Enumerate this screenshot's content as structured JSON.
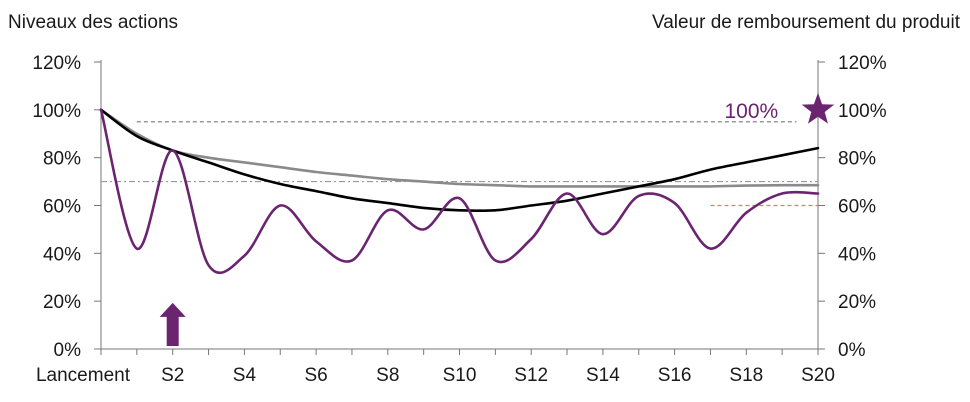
{
  "chart_data": {
    "type": "line",
    "left_axis_title": "Niveaux des actions",
    "right_axis_title": "Valeur de remboursement du produit",
    "y_ticks": [
      "0%",
      "20%",
      "40%",
      "60%",
      "80%",
      "100%",
      "120%"
    ],
    "y_tick_values": [
      0,
      20,
      40,
      60,
      80,
      100,
      120
    ],
    "ylim": [
      0,
      120
    ],
    "x_ticks": [
      "Lancement",
      "S2",
      "S4",
      "S6",
      "S8",
      "S10",
      "S12",
      "S14",
      "S16",
      "S18",
      "S20"
    ],
    "x_tick_values": [
      0,
      2,
      4,
      6,
      8,
      10,
      12,
      14,
      16,
      18,
      20
    ],
    "xlim": [
      0,
      20
    ],
    "series": [
      {
        "name": "black-curve",
        "color": "#000000",
        "x": [
          0,
          1,
          2,
          3,
          4,
          5,
          6,
          7,
          8,
          9,
          10,
          11,
          12,
          13,
          14,
          15,
          16,
          17,
          18,
          19,
          20
        ],
        "values": [
          100,
          89,
          83,
          78,
          73,
          69,
          66,
          63,
          61,
          59,
          58,
          58,
          60,
          62,
          65,
          68,
          71,
          75,
          78,
          81,
          84
        ]
      },
      {
        "name": "gray-curve",
        "color": "#8a8a8a",
        "x": [
          0,
          1,
          2,
          3,
          4,
          5,
          6,
          7,
          8,
          9,
          10,
          11,
          12,
          13,
          14,
          15,
          16,
          17,
          18,
          19,
          20
        ],
        "values": [
          100,
          90,
          83,
          80,
          78,
          76,
          74,
          72.5,
          71,
          70,
          69,
          68.5,
          68,
          68,
          68,
          68,
          68,
          68,
          68.3,
          68.5,
          68.5
        ]
      },
      {
        "name": "purple-curve",
        "color": "#6b2470",
        "x": [
          0,
          1,
          2,
          3,
          4,
          5,
          6,
          7,
          8,
          9,
          10,
          11,
          12,
          13,
          14,
          15,
          16,
          17,
          18,
          19,
          20
        ],
        "values": [
          100,
          42,
          83,
          35,
          39,
          60,
          45,
          37,
          58,
          50,
          63,
          37,
          46,
          65,
          48,
          64,
          61,
          42,
          57,
          65,
          65
        ]
      }
    ],
    "reference_lines": [
      {
        "name": "ref-95",
        "y": 95,
        "x_from": 1,
        "x_to": 19.4,
        "color": "#777777",
        "dash": "dashed"
      },
      {
        "name": "ref-70",
        "y": 70,
        "x_from": 0,
        "x_to": 20,
        "color": "#999999",
        "dash": "dashdot"
      },
      {
        "name": "ref-60",
        "y": 60,
        "x_from": 17,
        "x_to": 20,
        "color": "#e07a6a",
        "dash": "dashed"
      }
    ],
    "annotations": [
      {
        "name": "redemption-label",
        "text": "100%",
        "x": 18.5,
        "y": 100,
        "color": "#6b2470"
      },
      {
        "name": "redemption-star",
        "x": 20,
        "y": 100,
        "color": "#6b2470"
      },
      {
        "name": "arrow-marker",
        "x": 2,
        "y": 13,
        "color": "#6b2470"
      }
    ]
  }
}
